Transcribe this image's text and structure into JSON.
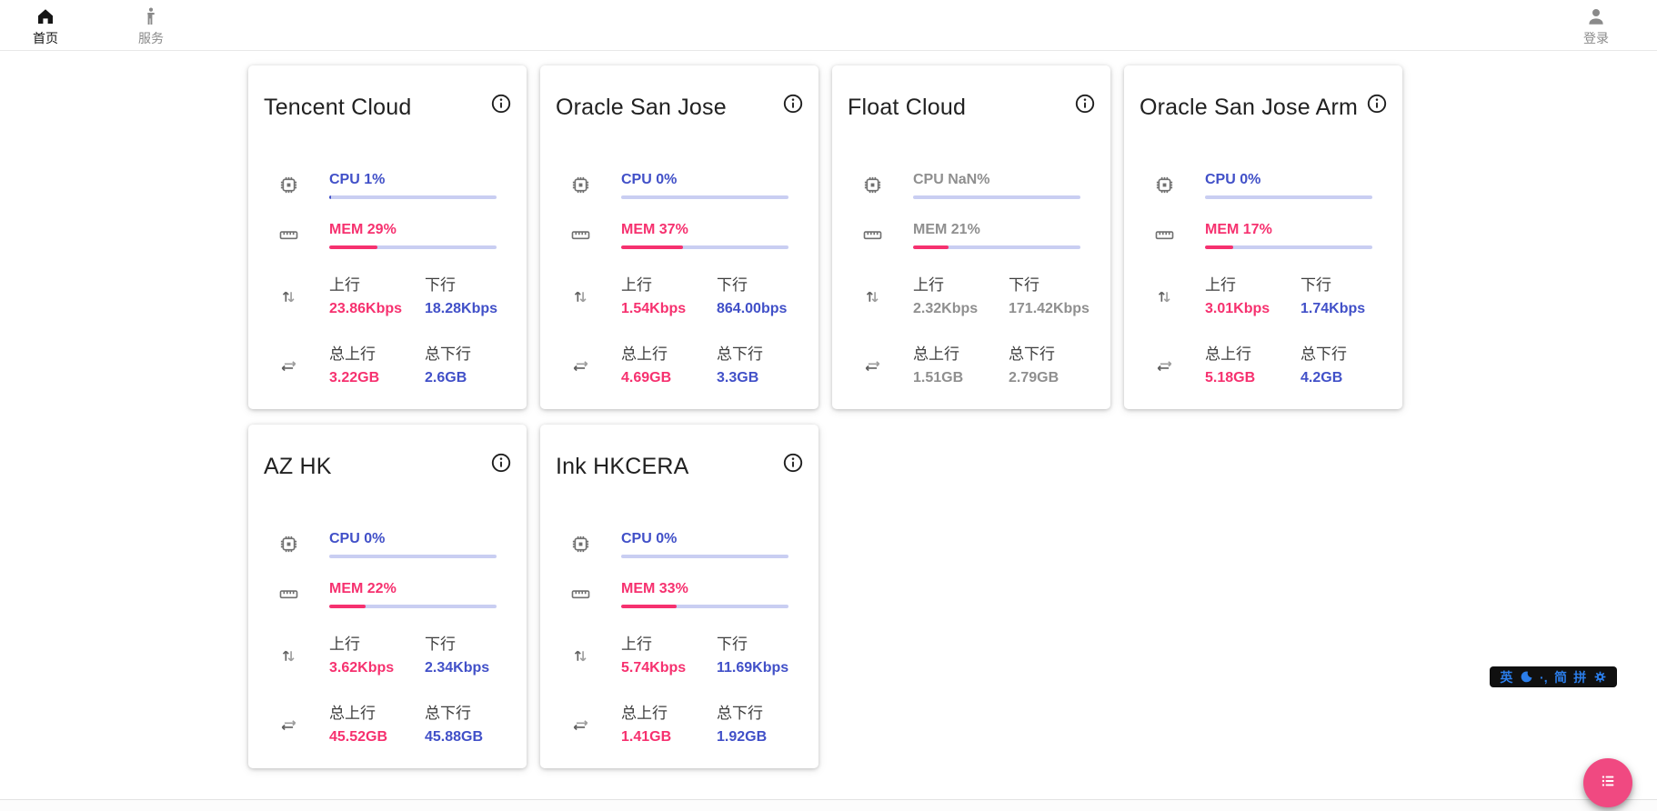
{
  "nav": {
    "home": {
      "label": "首页"
    },
    "services": {
      "label": "服务"
    },
    "login": {
      "label": "登录"
    }
  },
  "labels": {
    "upload": "上行",
    "download": "下行",
    "total_upload": "总上行",
    "total_download": "总下行"
  },
  "servers": [
    {
      "name": "Tencent Cloud",
      "online": true,
      "cpu": "CPU 1%",
      "cpu_pct": 1,
      "mem": "MEM 29%",
      "mem_pct": 29,
      "up": "23.86Kbps",
      "down": "18.28Kbps",
      "total_up": "3.22GB",
      "total_down": "2.6GB"
    },
    {
      "name": "Oracle San Jose",
      "online": true,
      "cpu": "CPU 0%",
      "cpu_pct": 0,
      "mem": "MEM 37%",
      "mem_pct": 37,
      "up": "1.54Kbps",
      "down": "864.00bps",
      "total_up": "4.69GB",
      "total_down": "3.3GB"
    },
    {
      "name": "Float Cloud",
      "online": false,
      "cpu": "CPU NaN%",
      "cpu_pct": null,
      "mem": "MEM 21%",
      "mem_pct": 21,
      "up": "2.32Kbps",
      "down": "171.42Kbps",
      "total_up": "1.51GB",
      "total_down": "2.79GB"
    },
    {
      "name": "Oracle San Jose Arm",
      "online": true,
      "cpu": "CPU 0%",
      "cpu_pct": 0,
      "mem": "MEM 17%",
      "mem_pct": 17,
      "up": "3.01Kbps",
      "down": "1.74Kbps",
      "total_up": "5.18GB",
      "total_down": "4.2GB"
    },
    {
      "name": "AZ HK",
      "online": true,
      "cpu": "CPU 0%",
      "cpu_pct": 0,
      "mem": "MEM 22%",
      "mem_pct": 22,
      "up": "3.62Kbps",
      "down": "2.34Kbps",
      "total_up": "45.52GB",
      "total_down": "45.88GB"
    },
    {
      "name": "Ink HKCERA",
      "online": true,
      "cpu": "CPU 0%",
      "cpu_pct": 0,
      "mem": "MEM 33%",
      "mem_pct": 33,
      "up": "5.74Kbps",
      "down": "11.69Kbps",
      "total_up": "1.41GB",
      "total_down": "1.92GB"
    }
  ],
  "ime_bar": {
    "language": "英",
    "half_width_icon": "crescent-moon",
    "punctuation": "·,",
    "simplified": "简",
    "pinyin": "拼",
    "settings_icon": "gear"
  },
  "colors": {
    "accent_blue": "#4150c8",
    "accent_pink": "#f6316f",
    "bar_track": "#c9cef2",
    "offline_gray": "#8f8f8f",
    "fab_pink": "#f04981",
    "ime_blue": "#2b7de9"
  }
}
